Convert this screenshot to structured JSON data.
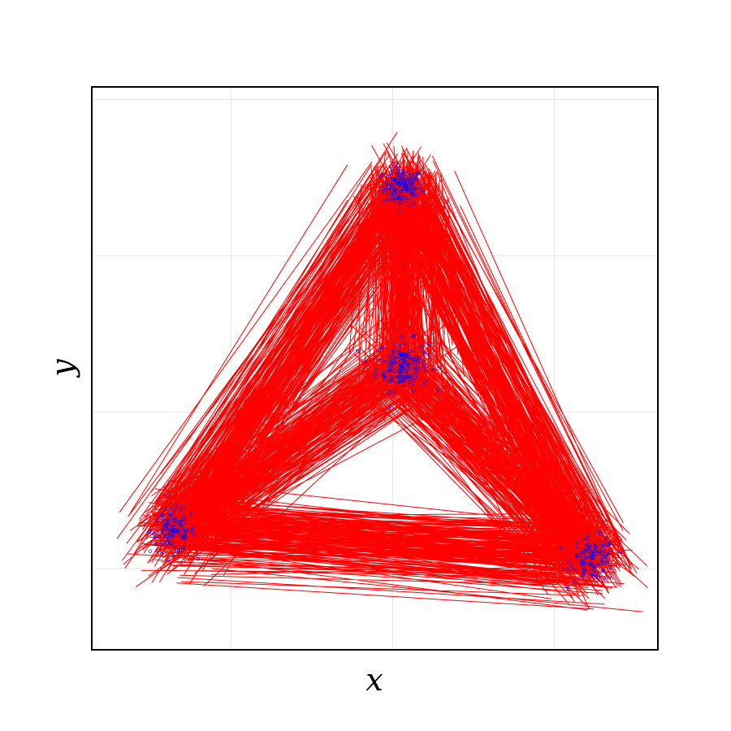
{
  "chart_data": {
    "type": "scatter",
    "xlabel": "x",
    "ylabel": "y",
    "grid": true,
    "tick_labels_shown": false,
    "xlim": [
      -0.93,
      0.82
    ],
    "ylim": [
      -0.76,
      1.04
    ],
    "clusters": [
      {
        "name": "",
        "center": [
          0.03,
          0.72
        ],
        "spread": 0.03,
        "count": 130
      },
      {
        "name": "",
        "center": [
          0.03,
          0.15
        ],
        "spread": 0.04,
        "count": 150
      },
      {
        "name": "",
        "center": [
          -0.68,
          -0.38
        ],
        "spread": 0.035,
        "count": 110
      },
      {
        "name": "",
        "center": [
          0.62,
          -0.47
        ],
        "spread": 0.035,
        "count": 110
      }
    ],
    "edges": [
      [
        0,
        1
      ],
      [
        0,
        2
      ],
      [
        0,
        3
      ],
      [
        1,
        2
      ],
      [
        1,
        3
      ],
      [
        2,
        3
      ]
    ],
    "edge_color": "#ff0000",
    "point_color": "#0000ff"
  }
}
